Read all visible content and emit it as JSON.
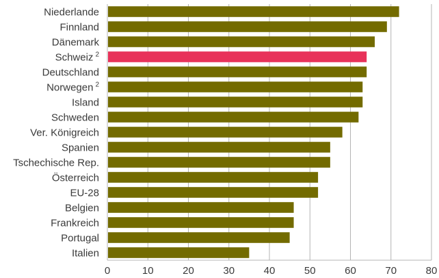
{
  "chart_data": {
    "type": "bar",
    "orientation": "horizontal",
    "title": "",
    "xlabel": "",
    "ylabel": "",
    "categories": [
      {
        "name": "Niederlande",
        "sup": ""
      },
      {
        "name": "Finnland",
        "sup": ""
      },
      {
        "name": "Dänemark",
        "sup": ""
      },
      {
        "name": "Schweiz",
        "sup": "2"
      },
      {
        "name": "Deutschland",
        "sup": ""
      },
      {
        "name": "Norwegen",
        "sup": "2"
      },
      {
        "name": "Island",
        "sup": ""
      },
      {
        "name": "Schweden",
        "sup": ""
      },
      {
        "name": "Ver. Königreich",
        "sup": ""
      },
      {
        "name": "Spanien",
        "sup": ""
      },
      {
        "name": "Tschechische Rep.",
        "sup": ""
      },
      {
        "name": "Österreich",
        "sup": ""
      },
      {
        "name": "EU-28",
        "sup": ""
      },
      {
        "name": "Belgien",
        "sup": ""
      },
      {
        "name": "Frankreich",
        "sup": ""
      },
      {
        "name": "Portugal",
        "sup": ""
      },
      {
        "name": "Italien",
        "sup": ""
      }
    ],
    "values": [
      72,
      69,
      66,
      64,
      64,
      63,
      63,
      62,
      58,
      55,
      55,
      52,
      52,
      46,
      46,
      45,
      35
    ],
    "highlight_index": 3,
    "xlim": [
      0,
      80
    ],
    "xticks": [
      0,
      10,
      20,
      30,
      40,
      50,
      60,
      70,
      80
    ],
    "grid": "vertical",
    "legend": "none",
    "colors": {
      "bar": "#736b00",
      "highlight": "#e8325a",
      "grid": "#b4b4b4",
      "plot_border": "#b4b4b4",
      "text": "#3a3a3a"
    }
  }
}
